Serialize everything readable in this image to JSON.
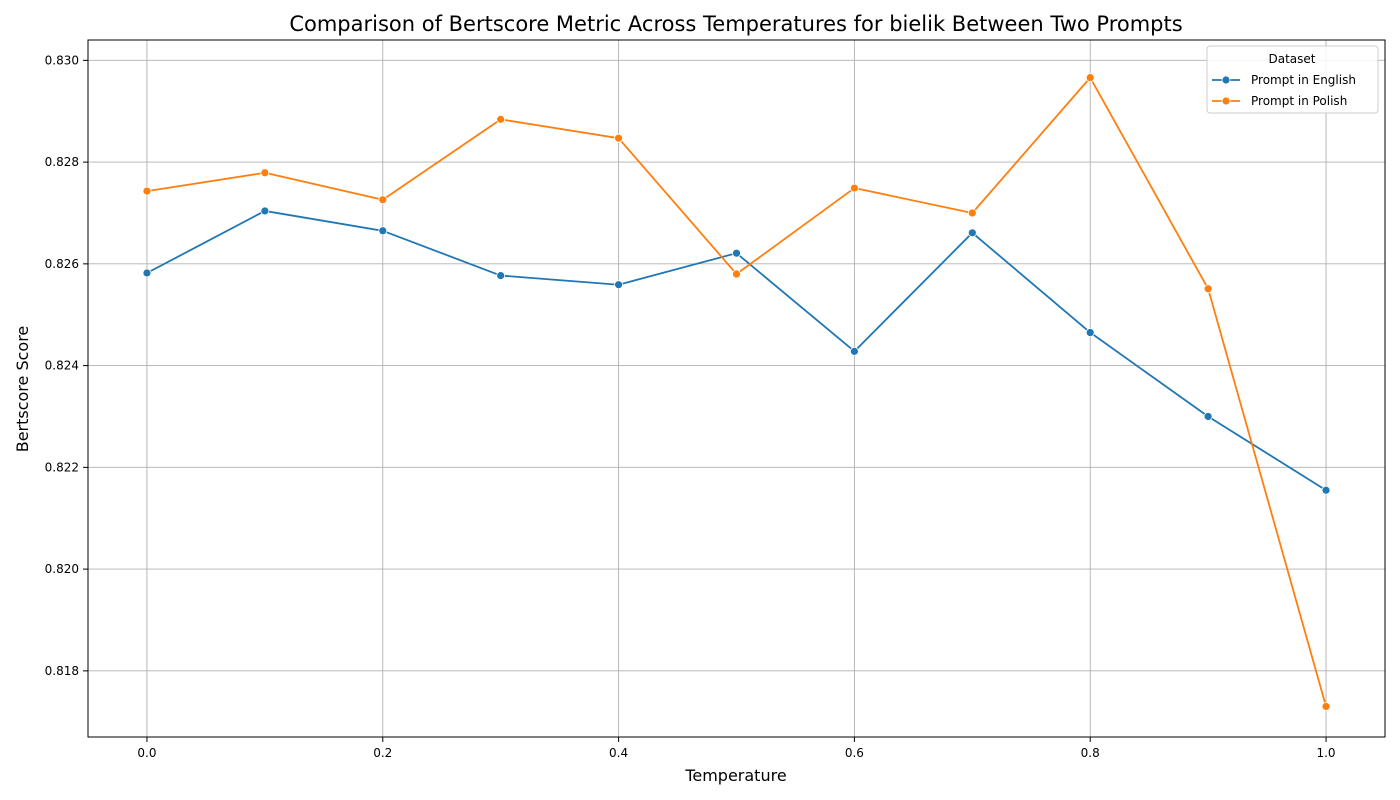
{
  "chart_data": {
    "type": "line",
    "title": "Comparison of Bertscore Metric Across Temperatures for bielik Between Two Prompts",
    "xlabel": "Temperature",
    "ylabel": "Bertscore Score",
    "x": [
      0.0,
      0.1,
      0.2,
      0.3,
      0.4,
      0.5,
      0.6,
      0.7,
      0.8,
      0.9,
      1.0
    ],
    "xlim": [
      -0.05,
      1.05
    ],
    "ylim": [
      0.8167,
      0.8304
    ],
    "x_ticks": [
      "0.0",
      "0.2",
      "0.4",
      "0.6",
      "0.8",
      "1.0"
    ],
    "y_ticks": [
      "0.818",
      "0.820",
      "0.822",
      "0.824",
      "0.826",
      "0.828",
      "0.830"
    ],
    "grid": true,
    "legend": {
      "title": "Dataset",
      "position": "top-right"
    },
    "series": [
      {
        "name": "Prompt in English",
        "color": "#1f77b4",
        "values": [
          0.82582,
          0.82704,
          0.82665,
          0.82577,
          0.82559,
          0.82621,
          0.82428,
          0.82661,
          0.82465,
          0.823,
          0.82155
        ]
      },
      {
        "name": "Prompt in Polish",
        "color": "#ff7f0e",
        "values": [
          0.82743,
          0.82779,
          0.82726,
          0.82884,
          0.82847,
          0.8258,
          0.82749,
          0.827,
          0.82966,
          0.82551,
          0.8173
        ]
      }
    ]
  }
}
